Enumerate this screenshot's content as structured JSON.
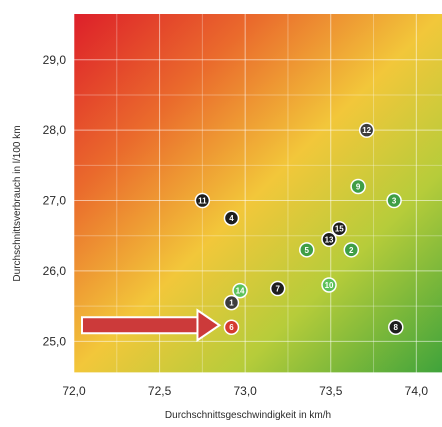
{
  "chart_data": {
    "type": "scatter",
    "title": "",
    "xlabel": "Durchschnittsgeschwindigkeit in km/h",
    "ylabel": "Durchschnittsverbrauch in l/100 km",
    "xlim": [
      72.0,
      74.15
    ],
    "ylim": [
      24.55,
      29.65
    ],
    "x_ticks": [
      "72,0",
      "72,5",
      "73,0",
      "73,5",
      "74,0"
    ],
    "y_ticks": [
      "25,0",
      "26,0",
      "27,0",
      "28,0",
      "29,0"
    ],
    "x_tick_values": [
      72.0,
      72.5,
      73.0,
      73.5,
      74.0
    ],
    "y_tick_values": [
      25.0,
      26.0,
      27.0,
      28.0,
      29.0
    ],
    "grid": true,
    "background": "gradient red (top-left) to yellow to green (bottom-right)",
    "highlight_arrow_target": "6",
    "colors": {
      "black_point": "#1e1e1e",
      "dark_gray_point": "#3d3d3d",
      "green_point": "#3f9e45",
      "light_green_point": "#5cc15a",
      "red_point": "#d43a2f",
      "arrow": "#cc3a3a"
    },
    "points": [
      {
        "label": "1",
        "x": 72.92,
        "y": 25.55,
        "color": "dark_gray"
      },
      {
        "label": "2",
        "x": 73.62,
        "y": 26.3,
        "color": "green"
      },
      {
        "label": "3",
        "x": 73.87,
        "y": 27.0,
        "color": "green"
      },
      {
        "label": "4",
        "x": 72.92,
        "y": 26.75,
        "color": "black"
      },
      {
        "label": "5",
        "x": 73.36,
        "y": 26.3,
        "color": "green"
      },
      {
        "label": "6",
        "x": 72.92,
        "y": 25.2,
        "color": "red"
      },
      {
        "label": "7",
        "x": 73.19,
        "y": 25.75,
        "color": "black"
      },
      {
        "label": "8",
        "x": 73.88,
        "y": 25.2,
        "color": "black"
      },
      {
        "label": "9",
        "x": 73.66,
        "y": 27.2,
        "color": "green"
      },
      {
        "label": "10",
        "x": 73.49,
        "y": 25.8,
        "color": "light_green"
      },
      {
        "label": "11",
        "x": 72.75,
        "y": 27.0,
        "color": "black"
      },
      {
        "label": "12",
        "x": 73.71,
        "y": 28.0,
        "color": "dark_gray"
      },
      {
        "label": "13",
        "x": 73.49,
        "y": 26.45,
        "color": "black"
      },
      {
        "label": "14",
        "x": 72.97,
        "y": 25.72,
        "color": "light_green"
      },
      {
        "label": "15",
        "x": 73.55,
        "y": 26.6,
        "color": "black"
      }
    ]
  }
}
